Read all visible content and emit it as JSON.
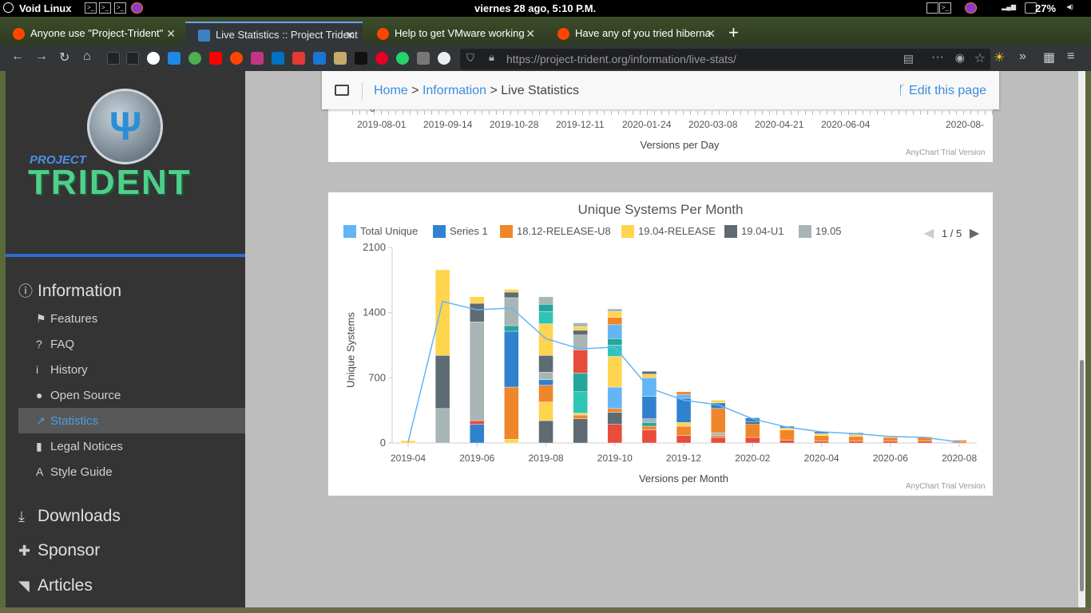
{
  "system_panel": {
    "distro": "Void Linux",
    "clock": "viernes 28 ago,  5:10 P.M.",
    "battery": "27%"
  },
  "browser": {
    "tabs": [
      {
        "label": "Anyone use \"Project-Trident\"",
        "active": false
      },
      {
        "label": "Live Statistics :: Project Trident",
        "active": true
      },
      {
        "label": "Help to get VMware working",
        "active": false
      },
      {
        "label": "Have any of you tried hiberna",
        "active": false
      }
    ],
    "url_host": "https://project-trident.org",
    "url_path": "/information/live-stats/"
  },
  "sidebar": {
    "logo_project": "PROJECT",
    "logo_name": "TRIDENT",
    "sections": [
      {
        "label": "Information",
        "icon": "info-circle-icon"
      },
      {
        "label": "Downloads",
        "icon": "download-icon"
      },
      {
        "label": "Sponsor",
        "icon": "gift-icon"
      },
      {
        "label": "Articles",
        "icon": "rss-icon"
      }
    ],
    "info_items": [
      {
        "label": "Features",
        "icon": "flag-icon"
      },
      {
        "label": "FAQ",
        "icon": "question-circle-icon"
      },
      {
        "label": "History",
        "icon": "info-icon"
      },
      {
        "label": "Open Source",
        "icon": "github-icon"
      },
      {
        "label": "Statistics",
        "icon": "line-chart-icon",
        "active": true
      },
      {
        "label": "Legal Notices",
        "icon": "file-icon"
      },
      {
        "label": "Style Guide",
        "icon": "font-icon"
      }
    ]
  },
  "breadcrumb": {
    "home": "Home",
    "information": "Information",
    "current": "Live Statistics",
    "sep": ">",
    "edit": "Edit this page"
  },
  "top_chart": {
    "ticks": [
      "0",
      "2019-08-01",
      "2019-09-14",
      "2019-10-28",
      "2019-12-11",
      "2020-01-24",
      "2020-03-08",
      "2020-04-21",
      "2020-06-04",
      "2020-08-"
    ],
    "xlabel": "Versions per Day",
    "trial": "AnyChart Trial Version"
  },
  "chart_data": {
    "type": "bar",
    "title": "Unique Systems Per Month",
    "xlabel": "Versions per Month",
    "ylabel": "Unique Systems",
    "ylim": [
      0,
      2100
    ],
    "yticks": [
      "0",
      "700",
      "1400",
      "2100"
    ],
    "xticks": [
      "2019-04",
      "2019-06",
      "2019-08",
      "2019-10",
      "2019-12",
      "2020-02",
      "2020-04",
      "2020-06",
      "2020-08"
    ],
    "legend_page": "1 / 5",
    "legend": [
      {
        "name": "Total Unique",
        "color": "#64b5f6"
      },
      {
        "name": "Series 1",
        "color": "#3182ce"
      },
      {
        "name": "18.12-RELEASE-U8",
        "color": "#f0862a"
      },
      {
        "name": "19.04-RELEASE",
        "color": "#ffd54f"
      },
      {
        "name": "19.04-U1",
        "color": "#5f6b73"
      },
      {
        "name": "19.05",
        "color": "#a7b6b4"
      }
    ],
    "categories": [
      "2019-04",
      "2019-05",
      "2019-06",
      "2019-07",
      "2019-08",
      "2019-09",
      "2019-10",
      "2019-11",
      "2019-12",
      "2020-01",
      "2020-02",
      "2020-03",
      "2020-04",
      "2020-05",
      "2020-06",
      "2020-07",
      "2020-08"
    ],
    "stacks": [
      [
        {
          "c": "#ffd54f",
          "v": 25
        }
      ],
      [
        {
          "c": "#a7b6b4",
          "v": 370
        },
        {
          "c": "#5f6b73",
          "v": 570
        },
        {
          "c": "#ffd54f",
          "v": 920
        }
      ],
      [
        {
          "c": "#3182ce",
          "v": 200
        },
        {
          "c": "#e74c3c",
          "v": 40
        },
        {
          "c": "#a7b6b4",
          "v": 1060
        },
        {
          "c": "#5f6b73",
          "v": 200
        },
        {
          "c": "#ffd54f",
          "v": 70
        }
      ],
      [
        {
          "c": "#ffd54f",
          "v": 40
        },
        {
          "c": "#f0862a",
          "v": 560
        },
        {
          "c": "#3182ce",
          "v": 600
        },
        {
          "c": "#26a69a",
          "v": 60
        },
        {
          "c": "#a7b6b4",
          "v": 300
        },
        {
          "c": "#5f6b73",
          "v": 60
        },
        {
          "c": "#ffd54f",
          "v": 30
        }
      ],
      [
        {
          "c": "#5f6b73",
          "v": 240
        },
        {
          "c": "#ffd54f",
          "v": 200
        },
        {
          "c": "#f0862a",
          "v": 180
        },
        {
          "c": "#3182ce",
          "v": 60
        },
        {
          "c": "#a7b6b4",
          "v": 80
        },
        {
          "c": "#5f6b73",
          "v": 180
        },
        {
          "c": "#ffd54f",
          "v": 340
        },
        {
          "c": "#2ec4b6",
          "v": 130
        },
        {
          "c": "#26a69a",
          "v": 80
        },
        {
          "c": "#a7b6b4",
          "v": 80
        }
      ],
      [
        {
          "c": "#5f6b73",
          "v": 260
        },
        {
          "c": "#f0862a",
          "v": 40
        },
        {
          "c": "#ffd54f",
          "v": 20
        },
        {
          "c": "#2ec4b6",
          "v": 230
        },
        {
          "c": "#26a69a",
          "v": 200
        },
        {
          "c": "#e74c3c",
          "v": 250
        },
        {
          "c": "#a7b6b4",
          "v": 160
        },
        {
          "c": "#5f6b73",
          "v": 50
        },
        {
          "c": "#ffd54f",
          "v": 40
        },
        {
          "c": "#a7b6b4",
          "v": 40
        }
      ],
      [
        {
          "c": "#e74c3c",
          "v": 200
        },
        {
          "c": "#5f6b73",
          "v": 130
        },
        {
          "c": "#f0862a",
          "v": 40
        },
        {
          "c": "#64b5f6",
          "v": 230
        },
        {
          "c": "#ffd54f",
          "v": 330
        },
        {
          "c": "#2ec4b6",
          "v": 120
        },
        {
          "c": "#26a69a",
          "v": 70
        },
        {
          "c": "#64b5f6",
          "v": 150
        },
        {
          "c": "#f0862a",
          "v": 80
        },
        {
          "c": "#ffd54f",
          "v": 60
        },
        {
          "c": "#a7b6b4",
          "v": 30
        }
      ],
      [
        {
          "c": "#e74c3c",
          "v": 140
        },
        {
          "c": "#f0862a",
          "v": 40
        },
        {
          "c": "#26a69a",
          "v": 40
        },
        {
          "c": "#a7b6b4",
          "v": 40
        },
        {
          "c": "#3182ce",
          "v": 240
        },
        {
          "c": "#64b5f6",
          "v": 200
        },
        {
          "c": "#ffd54f",
          "v": 40
        },
        {
          "c": "#5f6b73",
          "v": 30
        }
      ],
      [
        {
          "c": "#e74c3c",
          "v": 80
        },
        {
          "c": "#f0862a",
          "v": 100
        },
        {
          "c": "#ffd54f",
          "v": 40
        },
        {
          "c": "#3182ce",
          "v": 260
        },
        {
          "c": "#64b5f6",
          "v": 40
        },
        {
          "c": "#f0862a",
          "v": 30
        }
      ],
      [
        {
          "c": "#e74c3c",
          "v": 60
        },
        {
          "c": "#f0862a",
          "v": 20
        },
        {
          "c": "#a7b6b4",
          "v": 30
        },
        {
          "c": "#f0862a",
          "v": 260
        },
        {
          "c": "#3182ce",
          "v": 60
        },
        {
          "c": "#ffd54f",
          "v": 30
        }
      ],
      [
        {
          "c": "#e74c3c",
          "v": 60
        },
        {
          "c": "#f0862a",
          "v": 140
        },
        {
          "c": "#5f6b73",
          "v": 30
        },
        {
          "c": "#3182ce",
          "v": 40
        }
      ],
      [
        {
          "c": "#e74c3c",
          "v": 30
        },
        {
          "c": "#f0862a",
          "v": 110
        },
        {
          "c": "#ffd54f",
          "v": 20
        },
        {
          "c": "#3182ce",
          "v": 20
        }
      ],
      [
        {
          "c": "#e74c3c",
          "v": 20
        },
        {
          "c": "#f0862a",
          "v": 60
        },
        {
          "c": "#ffd54f",
          "v": 20
        },
        {
          "c": "#3182ce",
          "v": 20
        }
      ],
      [
        {
          "c": "#e74c3c",
          "v": 20
        },
        {
          "c": "#f0862a",
          "v": 50
        },
        {
          "c": "#ffd54f",
          "v": 20
        },
        {
          "c": "#3182ce",
          "v": 20
        }
      ],
      [
        {
          "c": "#e74c3c",
          "v": 20
        },
        {
          "c": "#f0862a",
          "v": 40
        },
        {
          "c": "#ffd54f",
          "v": 20
        }
      ],
      [
        {
          "c": "#e74c3c",
          "v": 20
        },
        {
          "c": "#f0862a",
          "v": 40
        },
        {
          "c": "#ffd54f",
          "v": 10
        }
      ],
      [
        {
          "c": "#e74c3c",
          "v": 10
        },
        {
          "c": "#f0862a",
          "v": 20
        }
      ]
    ],
    "line": {
      "name": "Total Unique",
      "color": "#64b5f6",
      "values": [
        10,
        1520,
        1430,
        1450,
        1120,
        1010,
        1030,
        590,
        460,
        410,
        260,
        170,
        120,
        100,
        70,
        60,
        10
      ]
    },
    "trial": "AnyChart Trial Version"
  }
}
